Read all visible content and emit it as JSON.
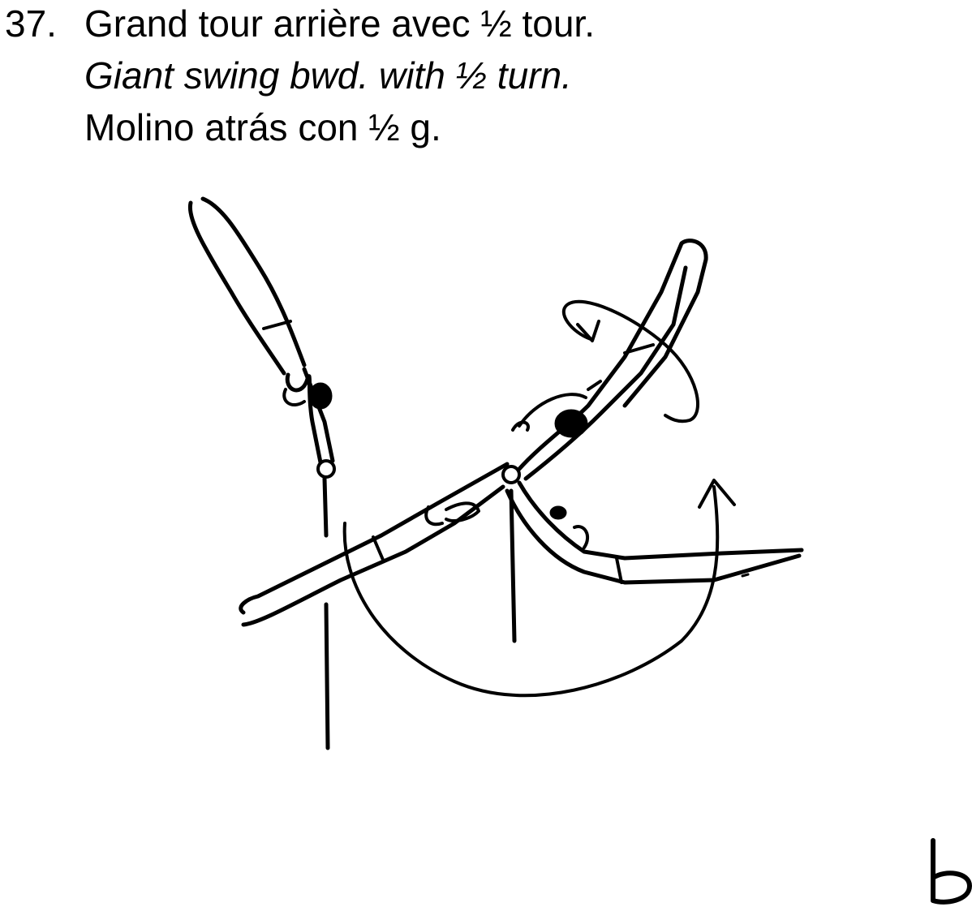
{
  "element": {
    "number": "37.",
    "title_fr": "Grand tour arrière avec ½ tour.",
    "title_en": "Giant swing bwd. with ½ turn.",
    "title_es": "Molino atrás con ½ g."
  },
  "corner_label": "b"
}
